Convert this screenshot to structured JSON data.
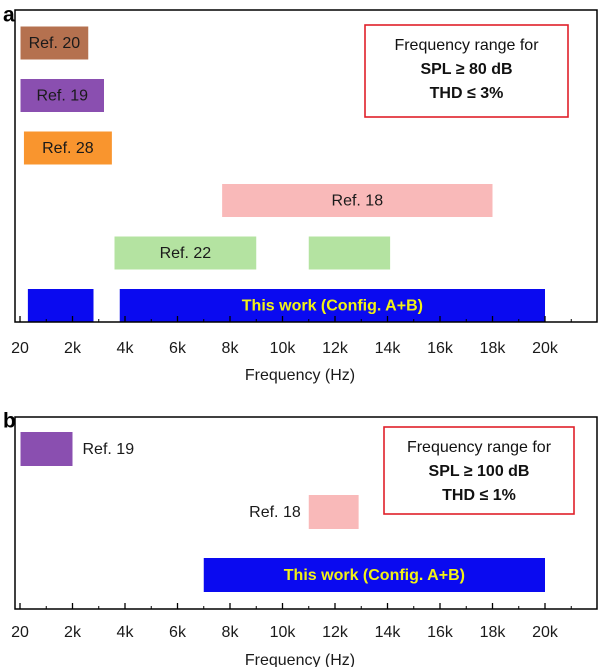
{
  "chart_data": [
    {
      "panel_label": "a",
      "type": "bar",
      "orientation": "horizontal-range",
      "xlabel": "Frequency (Hz)",
      "xlim": [
        0,
        22000
      ],
      "x_ticks": [
        {
          "value": 0,
          "label": "20"
        },
        {
          "value": 2000,
          "label": "2k"
        },
        {
          "value": 4000,
          "label": "4k"
        },
        {
          "value": 6000,
          "label": "6k"
        },
        {
          "value": 8000,
          "label": "8k"
        },
        {
          "value": 10000,
          "label": "10k"
        },
        {
          "value": 12000,
          "label": "12k"
        },
        {
          "value": 14000,
          "label": "14k"
        },
        {
          "value": 16000,
          "label": "16k"
        },
        {
          "value": 18000,
          "label": "18k"
        },
        {
          "value": 20000,
          "label": "20k"
        }
      ],
      "legend_box": {
        "lines": [
          "Frequency range for",
          "SPL ≥ 80 dB",
          "THD ≤ 3%"
        ],
        "placement": "top-right",
        "border_color": "#e0202a"
      },
      "series": [
        {
          "name": "Ref. 20",
          "row": 0,
          "color": "#b5714f",
          "text_color": "#1a1a1a",
          "segments": [
            {
              "start": 20,
              "end": 2600
            }
          ],
          "label_segment": 0
        },
        {
          "name": "Ref. 19",
          "row": 1,
          "color": "#8a4fb0",
          "text_color": "#1a1a1a",
          "segments": [
            {
              "start": 20,
              "end": 3200
            }
          ],
          "label_segment": 0
        },
        {
          "name": "Ref. 28",
          "row": 2,
          "color": "#f9952e",
          "text_color": "#1a1a1a",
          "segments": [
            {
              "start": 150,
              "end": 3500
            }
          ],
          "label_segment": 0
        },
        {
          "name": "Ref. 18",
          "row": 3,
          "color": "#f9b9b9",
          "text_color": "#1a1a1a",
          "segments": [
            {
              "start": 7700,
              "end": 18000
            }
          ],
          "label_segment": 0
        },
        {
          "name": "Ref. 22",
          "row": 4,
          "color": "#b4e3a1",
          "text_color": "#1a1a1a",
          "segments": [
            {
              "start": 3600,
              "end": 9000
            },
            {
              "start": 11000,
              "end": 14100
            }
          ],
          "label_segment": 0
        },
        {
          "name": "This work (Config. A+B)",
          "row": 5,
          "color": "#0a0af0",
          "text_color": "#f2f215",
          "bold": true,
          "segments": [
            {
              "start": 300,
              "end": 2800
            },
            {
              "start": 3800,
              "end": 20000
            }
          ],
          "label_segment": 1
        }
      ]
    },
    {
      "panel_label": "b",
      "type": "bar",
      "orientation": "horizontal-range",
      "xlabel": "Frequency (Hz)",
      "xlim": [
        0,
        22000
      ],
      "x_ticks": [
        {
          "value": 0,
          "label": "20"
        },
        {
          "value": 2000,
          "label": "2k"
        },
        {
          "value": 4000,
          "label": "4k"
        },
        {
          "value": 6000,
          "label": "6k"
        },
        {
          "value": 8000,
          "label": "8k"
        },
        {
          "value": 10000,
          "label": "10k"
        },
        {
          "value": 12000,
          "label": "12k"
        },
        {
          "value": 14000,
          "label": "14k"
        },
        {
          "value": 16000,
          "label": "16k"
        },
        {
          "value": 18000,
          "label": "18k"
        },
        {
          "value": 20000,
          "label": "20k"
        }
      ],
      "legend_box": {
        "lines": [
          "Frequency range for",
          "SPL ≥ 100 dB",
          "THD ≤ 1%"
        ],
        "placement": "top-right",
        "border_color": "#e0202a"
      },
      "series": [
        {
          "name": "Ref. 19",
          "row": 0,
          "color": "#8a4fb0",
          "text_color": "#1a1a1a",
          "label_position": "right",
          "segments": [
            {
              "start": 20,
              "end": 2000
            }
          ],
          "label_segment": 0
        },
        {
          "name": "Ref. 18",
          "row": 1,
          "color": "#f9b9b9",
          "text_color": "#1a1a1a",
          "label_position": "left",
          "segments": [
            {
              "start": 11000,
              "end": 12900
            }
          ],
          "label_segment": 0
        },
        {
          "name": "This work (Config. A+B)",
          "row": 2,
          "color": "#0a0af0",
          "text_color": "#f2f215",
          "bold": true,
          "segments": [
            {
              "start": 7000,
              "end": 20000
            }
          ],
          "label_segment": 0
        }
      ]
    }
  ]
}
